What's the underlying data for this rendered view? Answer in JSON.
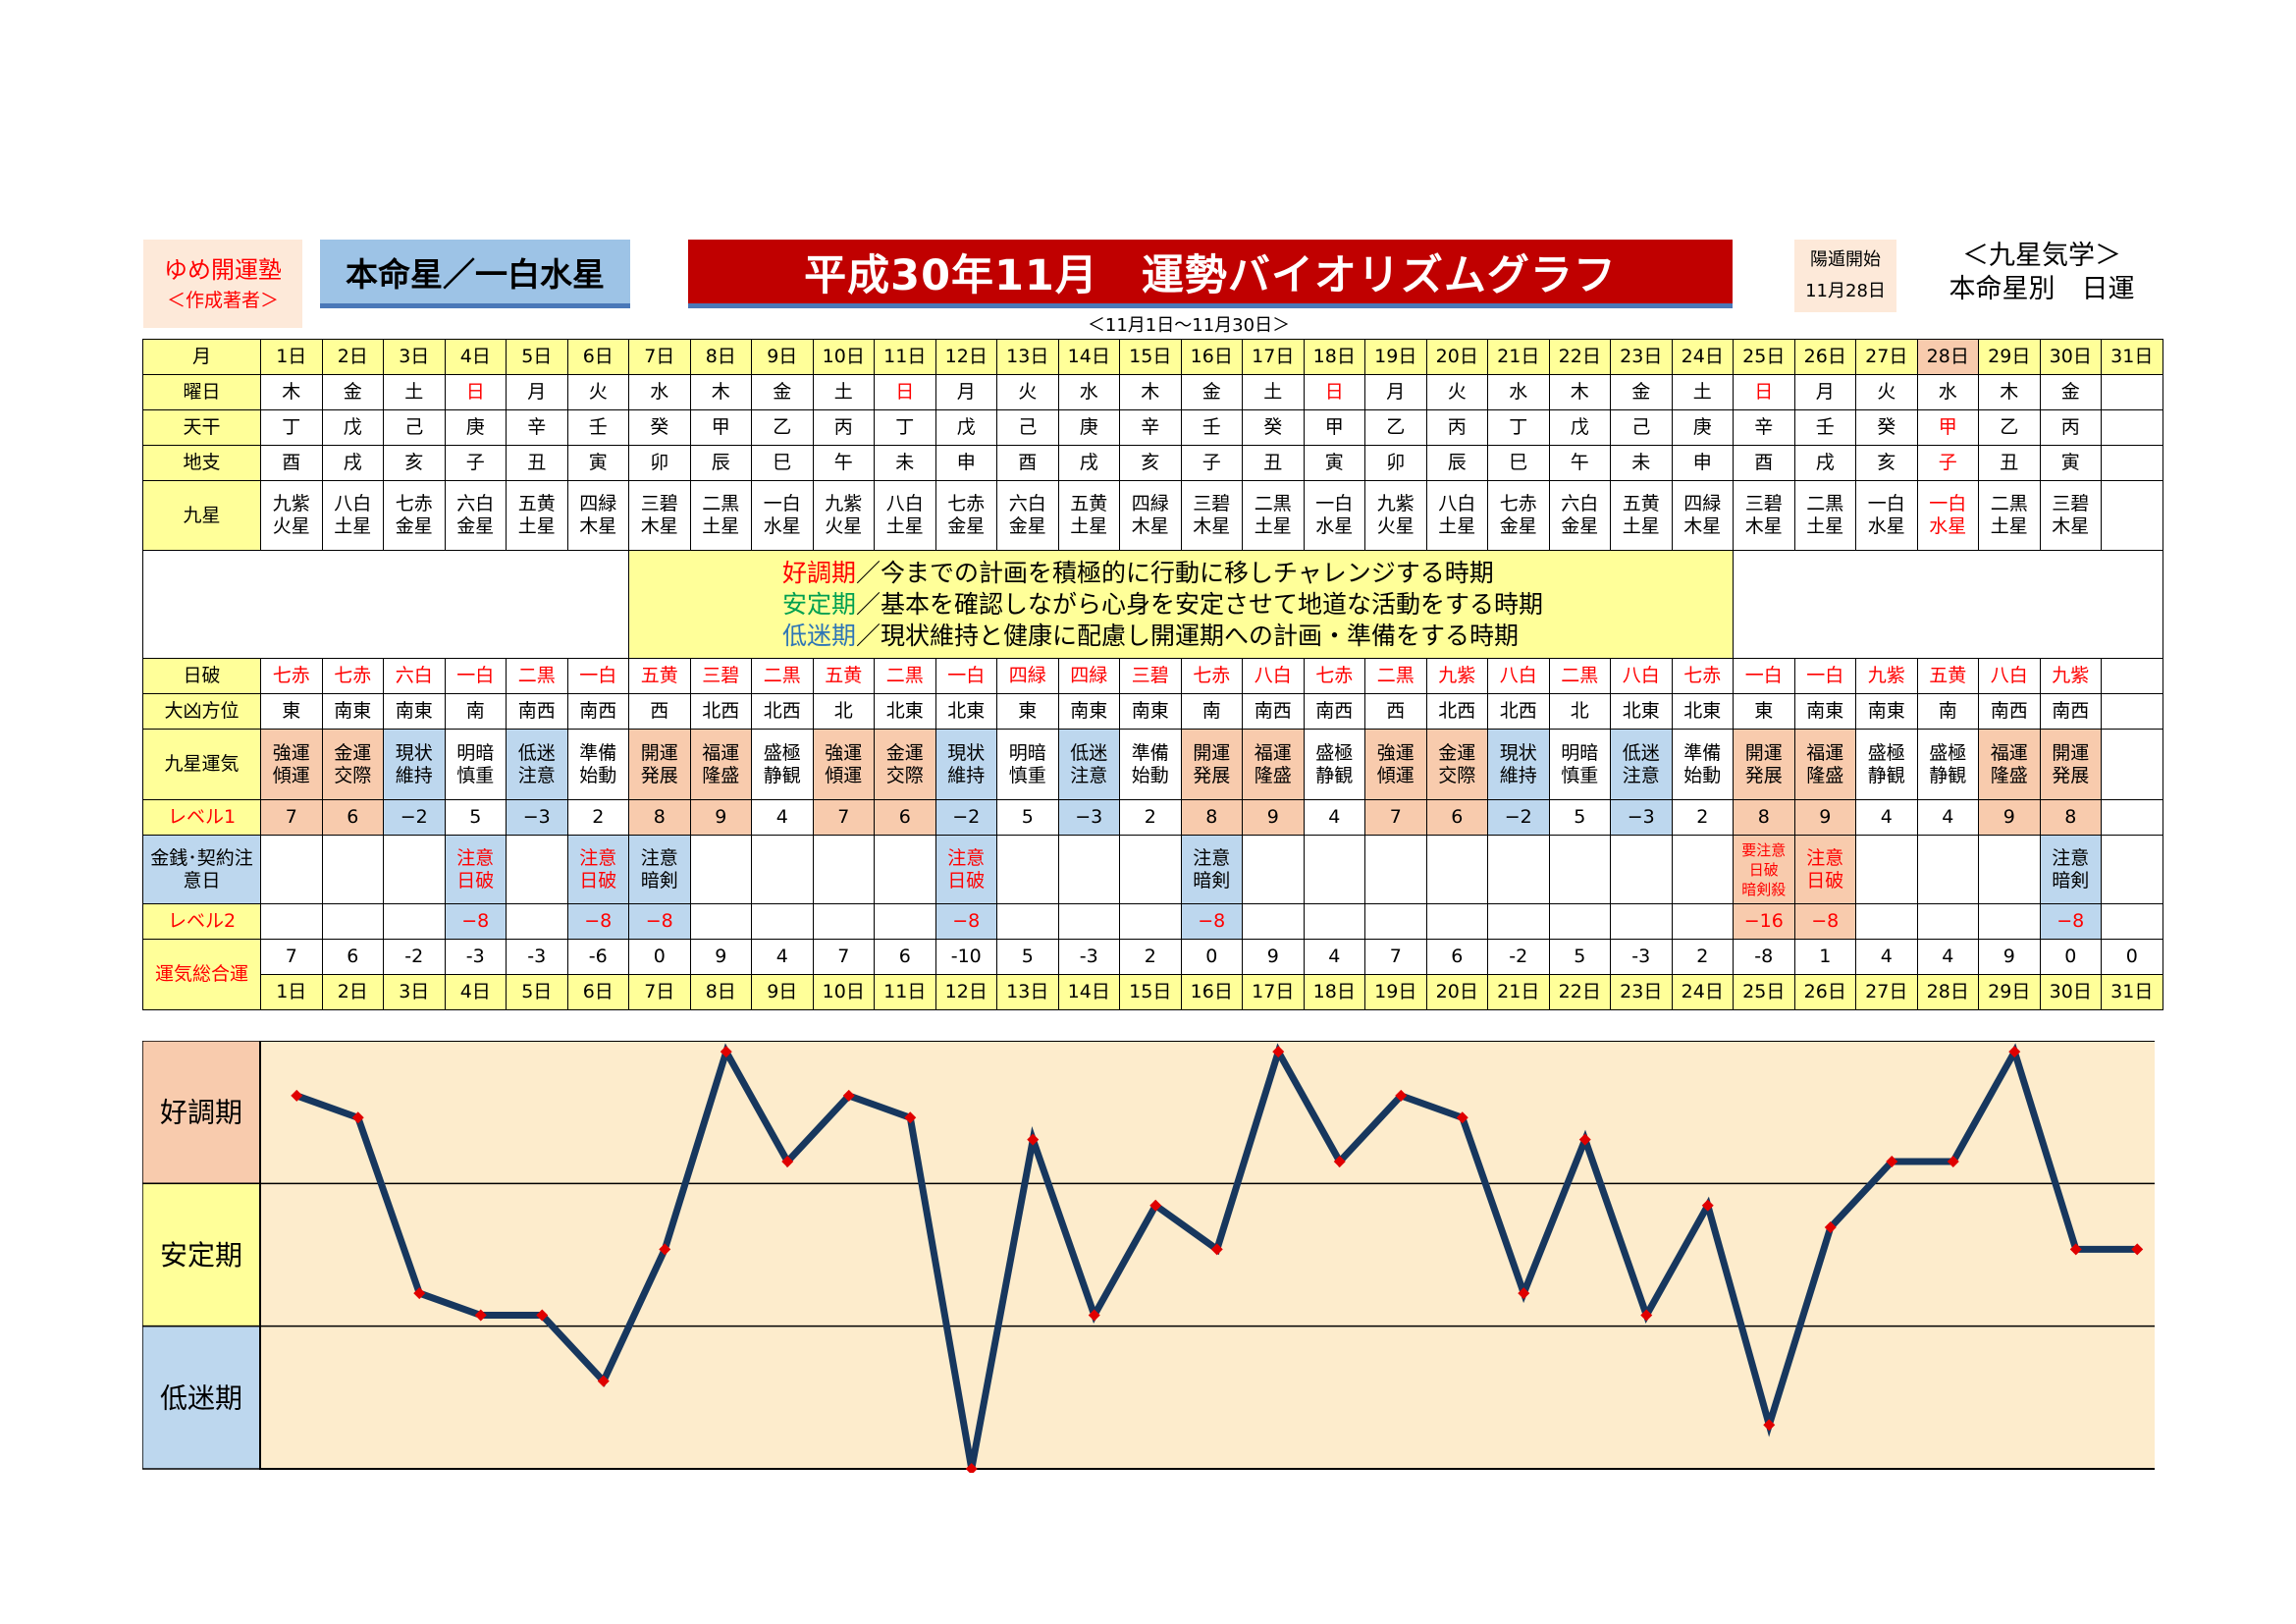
{
  "header": {
    "author_line1": "ゆめ開運塾",
    "author_line2": "＜作成著者＞",
    "honmei": "本命星／一白水星",
    "title": "平成30年11月　運勢バイオリズムグラフ",
    "subtitle": "＜11月1日～11月30日＞",
    "yoton_label": "陽遁開始",
    "yoton_date": "11月28日",
    "kyusei_title": "＜九星気学＞",
    "kyusei_sub": "本命星別　日運"
  },
  "row_labels": {
    "month": "月",
    "weekday": "曜日",
    "tenkan": "天干",
    "chishi": "地支",
    "kyusei": "九星",
    "nichiha": "日破",
    "daikyo": "大凶方位",
    "unki": "九星運気",
    "level1": "レベル1",
    "kinsen": "金銭･契約注意日",
    "level2": "レベル2",
    "sogo": "運気総合運"
  },
  "legend": {
    "line1_key": "好調期",
    "line1_text": "／今までの計画を積極的に行動に移しチャレンジする時期",
    "line2_key": "安定期",
    "line2_text": "／基本を確認しながら心身を安定させて地道な活動をする時期",
    "line3_key": "低迷期",
    "line3_text": "／現状維持と健康に配慮し開運期への計画・準備をする時期"
  },
  "days": [
    "1日",
    "2日",
    "3日",
    "4日",
    "5日",
    "6日",
    "7日",
    "8日",
    "9日",
    "10日",
    "11日",
    "12日",
    "13日",
    "14日",
    "15日",
    "16日",
    "17日",
    "18日",
    "19日",
    "20日",
    "21日",
    "22日",
    "23日",
    "24日",
    "25日",
    "26日",
    "27日",
    "28日",
    "29日",
    "30日",
    "31日"
  ],
  "weekdays": [
    "木",
    "金",
    "土",
    "日",
    "月",
    "火",
    "水",
    "木",
    "金",
    "土",
    "日",
    "月",
    "火",
    "水",
    "木",
    "金",
    "土",
    "日",
    "月",
    "火",
    "水",
    "木",
    "金",
    "土",
    "日",
    "月",
    "火",
    "水",
    "木",
    "金",
    ""
  ],
  "tenkan": [
    "丁",
    "戊",
    "己",
    "庚",
    "辛",
    "壬",
    "癸",
    "甲",
    "乙",
    "丙",
    "丁",
    "戊",
    "己",
    "庚",
    "辛",
    "壬",
    "癸",
    "甲",
    "乙",
    "丙",
    "丁",
    "戊",
    "己",
    "庚",
    "辛",
    "壬",
    "癸",
    "甲",
    "乙",
    "丙",
    ""
  ],
  "chishi": [
    "酉",
    "戌",
    "亥",
    "子",
    "丑",
    "寅",
    "卯",
    "辰",
    "巳",
    "午",
    "未",
    "申",
    "酉",
    "戌",
    "亥",
    "子",
    "丑",
    "寅",
    "卯",
    "辰",
    "巳",
    "午",
    "未",
    "申",
    "酉",
    "戌",
    "亥",
    "子",
    "丑",
    "寅",
    ""
  ],
  "kyusei_top": [
    "九紫",
    "八白",
    "七赤",
    "六白",
    "五黄",
    "四緑",
    "三碧",
    "二黒",
    "一白",
    "九紫",
    "八白",
    "七赤",
    "六白",
    "五黄",
    "四緑",
    "三碧",
    "二黒",
    "一白",
    "九紫",
    "八白",
    "七赤",
    "六白",
    "五黄",
    "四緑",
    "三碧",
    "二黒",
    "一白",
    "一白",
    "二黒",
    "三碧",
    ""
  ],
  "kyusei_bottom": [
    "火星",
    "土星",
    "金星",
    "金星",
    "土星",
    "木星",
    "木星",
    "土星",
    "水星",
    "火星",
    "土星",
    "金星",
    "金星",
    "土星",
    "木星",
    "木星",
    "土星",
    "水星",
    "火星",
    "土星",
    "金星",
    "金星",
    "土星",
    "木星",
    "木星",
    "土星",
    "水星",
    "水星",
    "土星",
    "木星",
    ""
  ],
  "nichiha": [
    "七赤",
    "七赤",
    "六白",
    "一白",
    "二黒",
    "一白",
    "五黄",
    "三碧",
    "二黒",
    "五黄",
    "二黒",
    "一白",
    "四緑",
    "四緑",
    "三碧",
    "七赤",
    "八白",
    "七赤",
    "二黒",
    "九紫",
    "八白",
    "二黒",
    "八白",
    "七赤",
    "一白",
    "一白",
    "九紫",
    "五黄",
    "八白",
    "九紫",
    ""
  ],
  "daikyo": [
    "東",
    "南東",
    "南東",
    "南",
    "南西",
    "南西",
    "西",
    "北西",
    "北西",
    "北",
    "北東",
    "北東",
    "東",
    "南東",
    "南東",
    "南",
    "南西",
    "南西",
    "西",
    "北西",
    "北西",
    "北",
    "北東",
    "北東",
    "東",
    "南東",
    "南東",
    "南",
    "南西",
    "南西",
    ""
  ],
  "unki_top": [
    "強運",
    "金運",
    "現状",
    "明暗",
    "低迷",
    "準備",
    "開運",
    "福運",
    "盛極",
    "強運",
    "金運",
    "現状",
    "明暗",
    "低迷",
    "準備",
    "開運",
    "福運",
    "盛極",
    "強運",
    "金運",
    "現状",
    "明暗",
    "低迷",
    "準備",
    "開運",
    "福運",
    "盛極",
    "盛極",
    "福運",
    "開運",
    ""
  ],
  "unki_bottom": [
    "傾運",
    "交際",
    "維持",
    "慎重",
    "注意",
    "始動",
    "発展",
    "隆盛",
    "静観",
    "傾運",
    "交際",
    "維持",
    "慎重",
    "注意",
    "始動",
    "発展",
    "隆盛",
    "静観",
    "傾運",
    "交際",
    "維持",
    "慎重",
    "注意",
    "始動",
    "発展",
    "隆盛",
    "静観",
    "静観",
    "隆盛",
    "発展",
    ""
  ],
  "level1": [
    "7",
    "6",
    "−2",
    "5",
    "−3",
    "2",
    "8",
    "9",
    "4",
    "7",
    "6",
    "−2",
    "5",
    "−3",
    "2",
    "8",
    "9",
    "4",
    "7",
    "6",
    "−2",
    "5",
    "−3",
    "2",
    "8",
    "9",
    "4",
    "4",
    "9",
    "8",
    ""
  ],
  "kinsen": [
    "",
    "",
    "",
    "注意\n日破",
    "",
    "注意\n日破",
    "注意\n暗剣",
    "",
    "",
    "",
    "",
    "注意\n日破",
    "",
    "",
    "",
    "注意\n暗剣",
    "",
    "",
    "",
    "",
    "",
    "",
    "",
    "",
    "要注意\n日破\n暗剣殺",
    "注意\n日破",
    "",
    "",
    "",
    "注意\n暗剣",
    ""
  ],
  "level2": [
    "",
    "",
    "",
    "−8",
    "",
    "−8",
    "−8",
    "",
    "",
    "",
    "",
    "−8",
    "",
    "",
    "",
    "−8",
    "",
    "",
    "",
    "",
    "",
    "",
    "",
    "",
    "−16",
    "−8",
    "",
    "",
    "",
    "−8",
    ""
  ],
  "sogo": [
    "7",
    "6",
    "-2",
    "-3",
    "-3",
    "-6",
    "0",
    "9",
    "4",
    "7",
    "6",
    "-10",
    "5",
    "-3",
    "2",
    "0",
    "9",
    "4",
    "7",
    "6",
    "-2",
    "5",
    "-3",
    "2",
    "-8",
    "1",
    "4",
    "4",
    "9",
    "0",
    "0"
  ],
  "chart_labels": {
    "kochoki": "好調期",
    "anteiki": "安定期",
    "teimeiki": "低迷期"
  },
  "colors": {
    "line": "#17375e",
    "marker": "#e00000",
    "plot_bg": "#fdeccc",
    "high": "#f8cbad",
    "mid": "#ffff99",
    "low": "#bdd7ee"
  },
  "chart_data": {
    "type": "line",
    "x": [
      "1日",
      "2日",
      "3日",
      "4日",
      "5日",
      "6日",
      "7日",
      "8日",
      "9日",
      "10日",
      "11日",
      "12日",
      "13日",
      "14日",
      "15日",
      "16日",
      "17日",
      "18日",
      "19日",
      "20日",
      "21日",
      "22日",
      "23日",
      "24日",
      "25日",
      "26日",
      "27日",
      "28日",
      "29日",
      "30日",
      "31日"
    ],
    "y": [
      7,
      6,
      -2,
      -3,
      -3,
      -6,
      0,
      9,
      4,
      7,
      6,
      -10,
      5,
      -3,
      2,
      0,
      9,
      4,
      7,
      6,
      -2,
      5,
      -3,
      2,
      -8,
      1,
      4,
      4,
      9,
      0,
      0
    ],
    "ylim": [
      -10,
      9.5
    ],
    "bands": [
      "好調期",
      "安定期",
      "低迷期"
    ],
    "grid": true
  }
}
